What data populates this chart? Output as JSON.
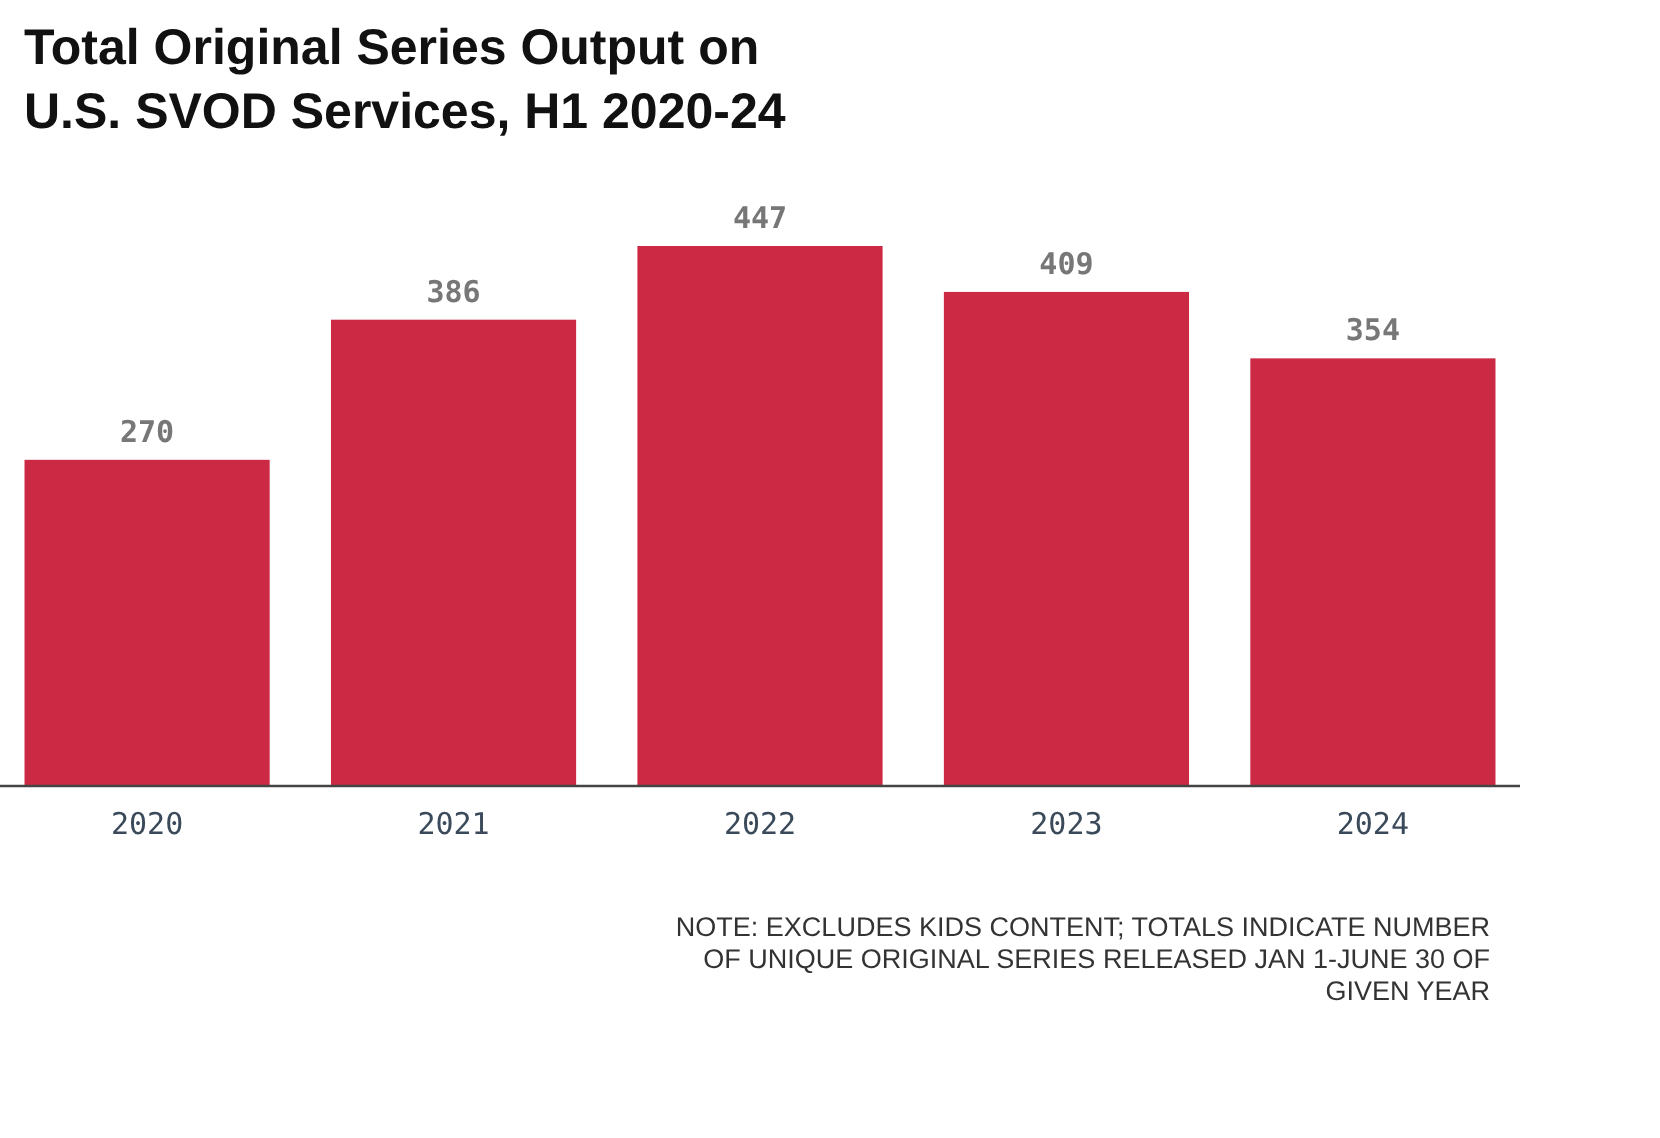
{
  "chart_data": {
    "type": "bar",
    "title": "Total Original Series Output on U.S. SVOD Services, H1 2020-24",
    "categories": [
      "2020",
      "2021",
      "2022",
      "2023",
      "2024"
    ],
    "values": [
      270,
      386,
      447,
      409,
      354
    ],
    "color": "#cc2a44",
    "data_labels": true,
    "annotations": [
      "NOTE: EXCLUDES KIDS CONTENT; TOTALS INDICATE NUMBER OF UNIQUE ORIGINAL SERIES RELEASED JAN 1-JUNE 30 OF GIVEN YEAR"
    ]
  }
}
